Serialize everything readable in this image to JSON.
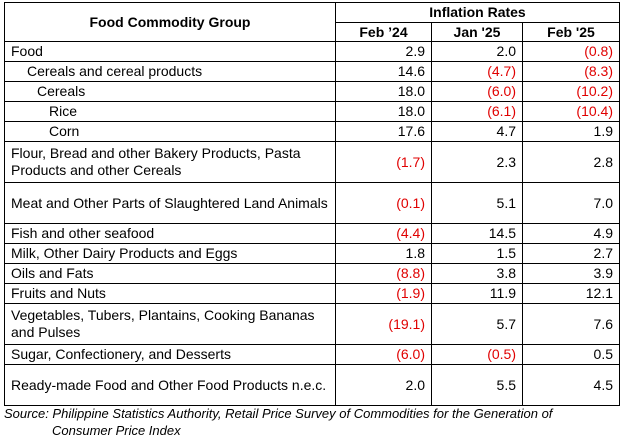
{
  "table": {
    "group_header": "Food Commodity Group",
    "rates_header": "Inflation Rates",
    "periods": [
      "Feb ’24",
      "Jan '25",
      "Feb '25"
    ],
    "rows": [
      {
        "label": "Food",
        "level": 0,
        "lines": 1,
        "values": [
          "2.9",
          "2.0",
          "(0.8)"
        ],
        "neg": [
          false,
          false,
          true
        ]
      },
      {
        "label": "Cereals and cereal products",
        "level": 1,
        "lines": 1,
        "values": [
          "14.6",
          "(4.7)",
          "(8.3)"
        ],
        "neg": [
          false,
          true,
          true
        ]
      },
      {
        "label": "Cereals",
        "level": 2,
        "lines": 1,
        "values": [
          "18.0",
          "(6.0)",
          "(10.2)"
        ],
        "neg": [
          false,
          true,
          true
        ]
      },
      {
        "label": "Rice",
        "level": 3,
        "lines": 1,
        "values": [
          "18.0",
          "(6.1)",
          "(10.4)"
        ],
        "neg": [
          false,
          true,
          true
        ]
      },
      {
        "label": "Corn",
        "level": 3,
        "lines": 1,
        "values": [
          "17.6",
          "4.7",
          "1.9"
        ],
        "neg": [
          false,
          false,
          false
        ]
      },
      {
        "label": "Flour, Bread and other Bakery Products, Pasta Products and other Cereals",
        "level": 0,
        "lines": 2,
        "values": [
          "(1.7)",
          "2.3",
          "2.8"
        ],
        "neg": [
          true,
          false,
          false
        ]
      },
      {
        "label": "Meat and Other Parts of Slaughtered Land Animals",
        "level": 0,
        "lines": 2,
        "values": [
          "(0.1)",
          "5.1",
          "7.0"
        ],
        "neg": [
          true,
          false,
          false
        ]
      },
      {
        "label": "Fish and other seafood",
        "level": 0,
        "lines": 1,
        "values": [
          "(4.4)",
          "14.5",
          "4.9"
        ],
        "neg": [
          true,
          false,
          false
        ]
      },
      {
        "label": "Milk, Other Dairy Products and Eggs",
        "level": 0,
        "lines": 1,
        "values": [
          "1.8",
          "1.5",
          "2.7"
        ],
        "neg": [
          false,
          false,
          false
        ]
      },
      {
        "label": "Oils and Fats",
        "level": 0,
        "lines": 1,
        "values": [
          "(8.8)",
          "3.8",
          "3.9"
        ],
        "neg": [
          true,
          false,
          false
        ]
      },
      {
        "label": "Fruits and Nuts",
        "level": 0,
        "lines": 1,
        "values": [
          "(1.9)",
          "11.9",
          "12.1"
        ],
        "neg": [
          true,
          false,
          false
        ]
      },
      {
        "label": "Vegetables, Tubers, Plantains, Cooking Bananas and Pulses",
        "level": 0,
        "lines": 2,
        "values": [
          "(19.1)",
          "5.7",
          "7.6"
        ],
        "neg": [
          true,
          false,
          false
        ]
      },
      {
        "label": "Sugar, Confectionery, and Desserts",
        "level": 0,
        "lines": 1,
        "values": [
          "(6.0)",
          "(0.5)",
          "0.5"
        ],
        "neg": [
          true,
          true,
          false
        ]
      },
      {
        "label": "Ready-made Food and Other Food Products n.e.c.",
        "level": 0,
        "lines": 2,
        "values": [
          "2.0",
          "5.5",
          "4.5"
        ],
        "neg": [
          false,
          false,
          false
        ]
      }
    ]
  },
  "source": {
    "line1": "Source: Philippine Statistics Authority, Retail Price Survey of Commodities for the Generation of",
    "line2": "Consumer Price Index"
  },
  "colors": {
    "negative": "#e00000",
    "text": "#000000",
    "border": "#000000"
  }
}
